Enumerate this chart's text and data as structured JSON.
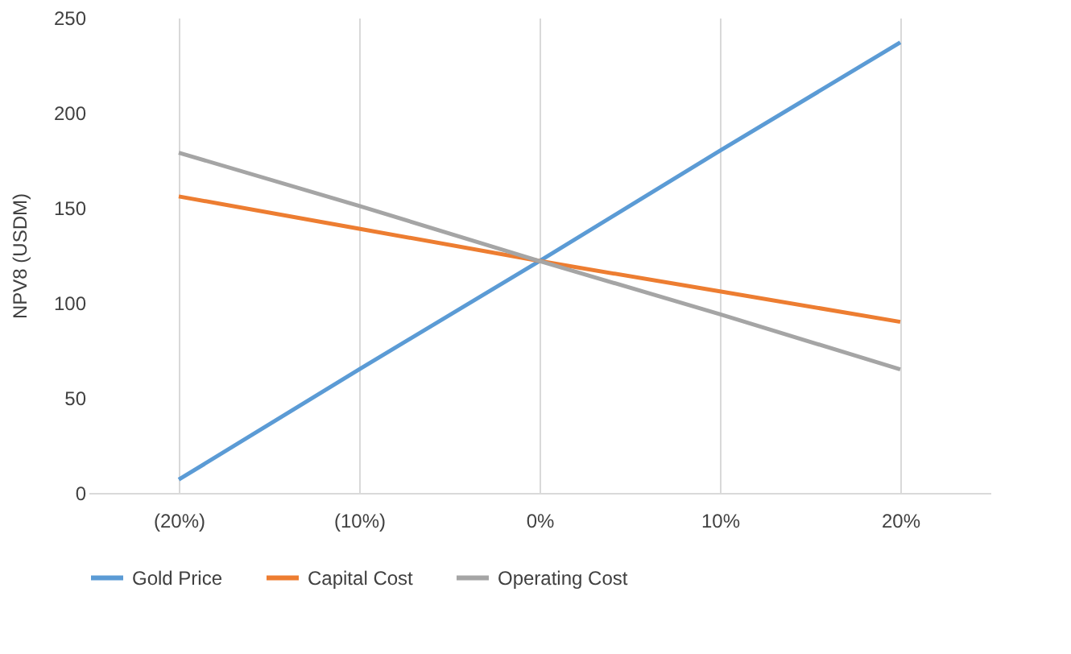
{
  "chart_data": {
    "type": "line",
    "ylabel": "NPV8 (USDM)",
    "categories": [
      "(20%)",
      "(10%)",
      "0%",
      "10%",
      "20%"
    ],
    "series": [
      {
        "name": "Gold Price",
        "color": "#5b9bd5",
        "values": [
          7,
          65,
          122,
          180,
          237
        ]
      },
      {
        "name": "Capital Cost",
        "color": "#ed7d31",
        "values": [
          156,
          139,
          122,
          106,
          90
        ]
      },
      {
        "name": "Operating Cost",
        "color": "#a5a5a5",
        "values": [
          179,
          151,
          122,
          94,
          65
        ]
      }
    ],
    "ylim": [
      0,
      250
    ],
    "yticks": [
      0,
      50,
      100,
      150,
      200,
      250
    ],
    "grid": "x",
    "legend": "bottom",
    "marker": "none",
    "line_style": "solid"
  }
}
